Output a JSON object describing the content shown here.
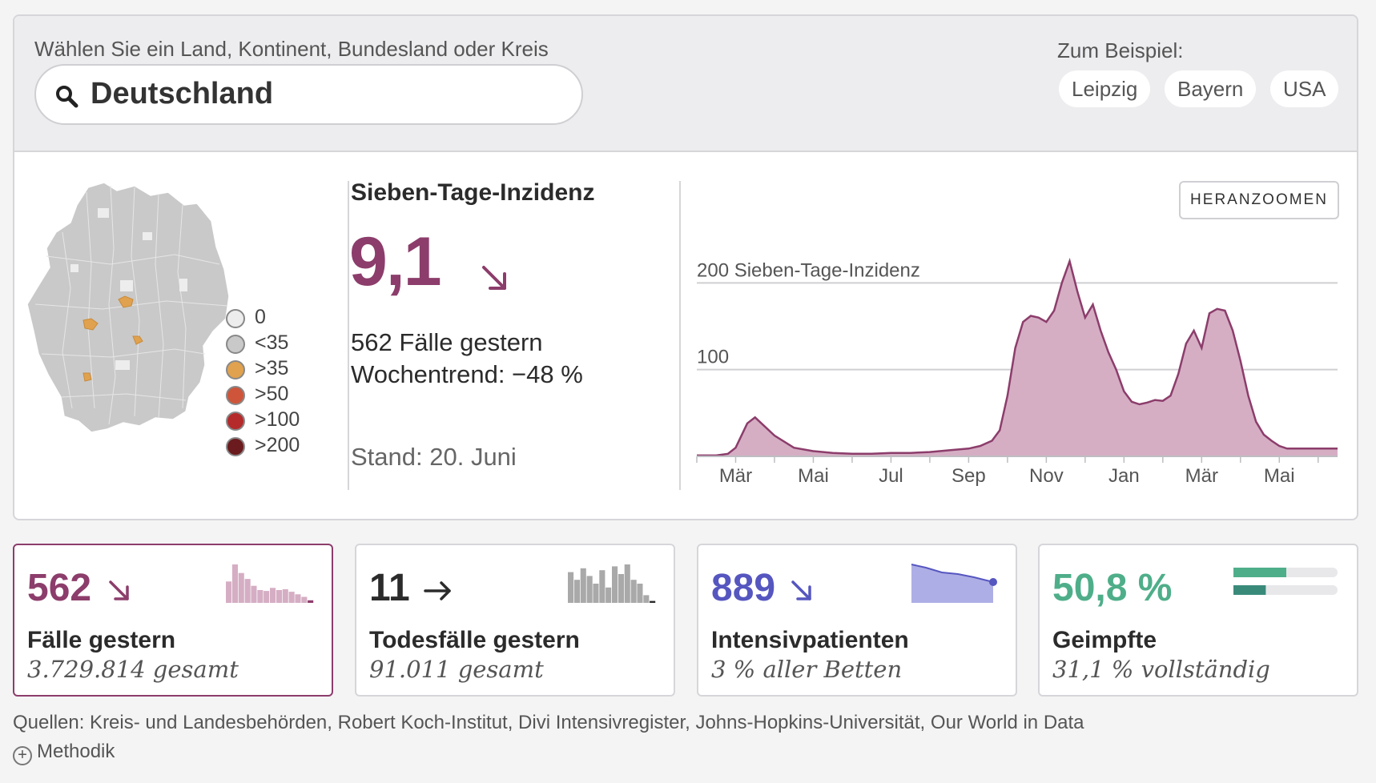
{
  "search": {
    "caption": "Wählen Sie ein Land, Kontinent, Bundesland oder Kreis",
    "value": "Deutschland",
    "examples_caption": "Zum Beispiel:",
    "examples": [
      "Leipzig",
      "Bayern",
      "USA"
    ]
  },
  "legend": [
    {
      "label": "0",
      "color": "#ededed"
    },
    {
      "label": "<35",
      "color": "#c9c9c9"
    },
    {
      "label": ">35",
      "color": "#e0a24e"
    },
    {
      "label": ">50",
      "color": "#cf553a"
    },
    {
      "label": ">100",
      "color": "#b52a2a"
    },
    {
      "label": ">200",
      "color": "#6b1a1d"
    }
  ],
  "incidence": {
    "title": "Sieben-Tage-Inzidenz",
    "value": "9,1",
    "cases_line": "562 Fälle gestern",
    "trend_line": "Wochentrend: −48 %",
    "stand": "Stand: 20. Juni",
    "trend_icon": "arrow-down-right"
  },
  "zoom_button": "HERANZOOMEN",
  "chart_data": {
    "type": "area",
    "y_axis_label": "200 Sieben-Tage-Inzidenz",
    "y_ticks": [
      {
        "value": 100,
        "label": "100"
      },
      {
        "value": 200,
        "label": "200 Sieben-Tage-Inzidenz"
      }
    ],
    "ylim": [
      0,
      240
    ],
    "x_tick_labels": [
      "Mär",
      "Mai",
      "Jul",
      "Sep",
      "Nov",
      "Jan",
      "Mär",
      "Mai"
    ],
    "x": [
      0,
      0.5,
      0.8,
      1.0,
      1.3,
      1.5,
      2,
      2.5,
      3,
      3.5,
      4,
      4.5,
      5,
      5.5,
      6,
      6.5,
      7,
      7.3,
      7.6,
      7.8,
      8.0,
      8.2,
      8.4,
      8.6,
      8.8,
      9.0,
      9.2,
      9.4,
      9.6,
      9.8,
      10.0,
      10.2,
      10.4,
      10.6,
      10.8,
      11.0,
      11.2,
      11.4,
      11.6,
      11.8,
      12.0,
      12.2,
      12.4,
      12.6,
      12.8,
      13.0,
      13.2,
      13.4,
      13.6,
      13.8,
      14.0,
      14.2,
      14.4,
      14.6,
      14.8,
      15.0,
      15.2,
      15.4,
      15.6,
      15.8,
      16.0,
      16.3,
      16.5
    ],
    "values": [
      1,
      1,
      3,
      10,
      38,
      45,
      24,
      10,
      6,
      4,
      3,
      3,
      4,
      4,
      5,
      7,
      9,
      12,
      18,
      30,
      70,
      125,
      155,
      162,
      160,
      155,
      168,
      200,
      225,
      190,
      160,
      175,
      145,
      120,
      100,
      75,
      63,
      60,
      62,
      65,
      64,
      70,
      95,
      130,
      145,
      125,
      165,
      170,
      168,
      145,
      110,
      70,
      40,
      25,
      18,
      12,
      9,
      9,
      9,
      9,
      9,
      9,
      9
    ],
    "xlim": [
      0,
      16.5
    ],
    "color": "#8c3d6b",
    "fill": "#d5aec4"
  },
  "cards": [
    {
      "value": "562",
      "title": "Fälle gestern",
      "sub": "3.729.814 gesamt",
      "color": "#8c3d6b",
      "icon": "arrow-down-right",
      "mini": "bars"
    },
    {
      "value": "11",
      "title": "Todesfälle gestern",
      "sub": "91.011 gesamt",
      "color": "#2b2b2b",
      "icon": "arrow-right",
      "mini": "bars"
    },
    {
      "value": "889",
      "title": "Intensivpatienten",
      "sub": "3 % aller Betten",
      "color": "#5656c0",
      "icon": "arrow-down-right",
      "mini": "area"
    },
    {
      "value": "50,8 %",
      "title": "Geimpfte",
      "sub": "31,1 % vollständig",
      "color": "#4fae8a",
      "icon": "",
      "mini": "progress",
      "first_dose": 0.508,
      "full": 0.311
    }
  ],
  "sources": "Quellen: Kreis- und Landesbehörden, Robert Koch-Institut, Divi Intensivregister, Johns-Hopkins-Universität, Our World in Data",
  "method_label": "Methodik"
}
